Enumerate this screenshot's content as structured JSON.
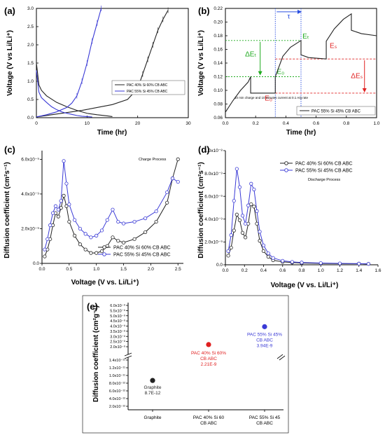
{
  "colors": {
    "black": "#222222",
    "blue": "#3a3ad6",
    "red": "#e02020",
    "green": "#1faa1f",
    "gridblue": "#2a4fe0"
  },
  "chart_data": [
    {
      "panel": "(a)",
      "type": "line",
      "xlabel": "Time (hr)",
      "ylabel": "Voltage (V vs Li/Li⁺)",
      "xlim": [
        0,
        30
      ],
      "ylim": [
        0,
        3
      ],
      "xticks": [
        "0",
        "10",
        "20",
        "30"
      ],
      "yticks": [
        "0.0",
        "0.5",
        "1.0",
        "1.5",
        "2.0",
        "2.5",
        "3.0"
      ],
      "legend_position": "center-right",
      "series": [
        {
          "name": "PAC 40% Si 60% CB ABC",
          "color": "#222222",
          "discharge": [
            [
              0,
              1.5
            ],
            [
              0.5,
              0.9
            ],
            [
              1,
              0.75
            ],
            [
              2,
              0.6
            ],
            [
              4,
              0.42
            ],
            [
              6,
              0.3
            ],
            [
              8,
              0.2
            ],
            [
              10,
              0.12
            ],
            [
              12,
              0.08
            ],
            [
              14,
              0.05
            ],
            [
              15,
              0.03
            ]
          ],
          "charge": [
            [
              0,
              0.02
            ],
            [
              3,
              0.08
            ],
            [
              6,
              0.14
            ],
            [
              9,
              0.2
            ],
            [
              12,
              0.28
            ],
            [
              15,
              0.36
            ],
            [
              18,
              0.5
            ],
            [
              20,
              0.8
            ],
            [
              21,
              1.2
            ],
            [
              22,
              1.6
            ],
            [
              23,
              2.0
            ],
            [
              24,
              2.4
            ],
            [
              25,
              2.7
            ],
            [
              26,
              2.95
            ]
          ]
        },
        {
          "name": "PAC 55% Si 45% CB ABC",
          "color": "#3a3ad6",
          "discharge": [
            [
              0,
              1.3
            ],
            [
              0.5,
              0.7
            ],
            [
              1,
              0.55
            ],
            [
              2,
              0.42
            ],
            [
              3,
              0.3
            ],
            [
              4,
              0.22
            ],
            [
              5,
              0.16
            ],
            [
              6,
              0.12
            ],
            [
              7,
              0.09
            ],
            [
              8,
              0.06
            ],
            [
              9,
              0.04
            ],
            [
              10,
              0.03
            ],
            [
              11,
              0.02
            ]
          ],
          "charge": [
            [
              0,
              0.02
            ],
            [
              2,
              0.08
            ],
            [
              4,
              0.16
            ],
            [
              6,
              0.28
            ],
            [
              7,
              0.4
            ],
            [
              8,
              0.6
            ],
            [
              9,
              1.0
            ],
            [
              10,
              1.5
            ],
            [
              11,
              2.1
            ],
            [
              12,
              2.6
            ],
            [
              12.8,
              3.0
            ]
          ]
        }
      ]
    },
    {
      "panel": "(b)",
      "type": "line",
      "xlabel": "Time (hr)",
      "ylabel": "Voltage (V vs Li/Li⁺)",
      "xlim": [
        0,
        1
      ],
      "ylim": [
        0.06,
        0.22
      ],
      "xticks": [
        "0.0",
        "0.2",
        "0.4",
        "0.6",
        "0.8",
        "1.0"
      ],
      "yticks": [
        "0.06",
        "0.08",
        "0.10",
        "0.12",
        "0.14",
        "0.16",
        "0.18",
        "0.20",
        "0.22"
      ],
      "legend_position": "bottom-right",
      "annotations": [
        "τ",
        "ΔEₜ",
        "Eₜ",
        "E₀",
        "E₀",
        "Eₛ",
        "ΔEₛ"
      ],
      "note": "10 min charge and 10 minutes current at 0.1 A/g rate",
      "series": [
        {
          "name": "PAC 55% Si 45% CB ABC",
          "color": "#222222",
          "points": [
            [
              0,
              0.068
            ],
            [
              0.05,
              0.085
            ],
            [
              0.1,
              0.1
            ],
            [
              0.15,
              0.112
            ],
            [
              0.167,
              0.12
            ],
            [
              0.167,
              0.096
            ],
            [
              0.33,
              0.096
            ],
            [
              0.33,
              0.12
            ],
            [
              0.38,
              0.15
            ],
            [
              0.43,
              0.163
            ],
            [
              0.5,
              0.173
            ],
            [
              0.5,
              0.152
            ],
            [
              0.55,
              0.148
            ],
            [
              0.667,
              0.146
            ],
            [
              0.667,
              0.172
            ],
            [
              0.72,
              0.19
            ],
            [
              0.78,
              0.204
            ],
            [
              0.833,
              0.212
            ],
            [
              0.833,
              0.188
            ],
            [
              0.9,
              0.183
            ],
            [
              1.0,
              0.18
            ]
          ]
        }
      ]
    },
    {
      "panel": "(c)",
      "type": "line",
      "title": "Charge Process",
      "xlabel": "Voltage (V vs. Li/Li⁺)",
      "ylabel": "Diffusion coefficient (cm²s⁻¹)",
      "xlim": [
        0,
        2.6
      ],
      "ylim": [
        0,
        6.5e-09
      ],
      "xticks": [
        "0.0",
        "0.5",
        "1.0",
        "1.5",
        "2.0",
        "2.5"
      ],
      "yticks": [
        "0.0",
        "2.0x10⁻⁹",
        "4.0x10⁻⁹",
        "6.0x10⁻⁹"
      ],
      "legend_position": "bottom-right",
      "series": [
        {
          "name": "PAC 40% Si 60% CB ABC",
          "color": "#222222",
          "points": [
            [
              0.05,
              4e-10
            ],
            [
              0.1,
              8e-10
            ],
            [
              0.15,
              1.4e-09
            ],
            [
              0.2,
              2.2e-09
            ],
            [
              0.25,
              2.9e-09
            ],
            [
              0.3,
              2.7e-09
            ],
            [
              0.35,
              3.2e-09
            ],
            [
              0.4,
              3.9e-09
            ],
            [
              0.45,
              3.3e-09
            ],
            [
              0.5,
              2.4e-09
            ],
            [
              0.6,
              1.6e-09
            ],
            [
              0.7,
              1.1e-09
            ],
            [
              0.8,
              8e-10
            ],
            [
              0.9,
              6e-10
            ],
            [
              1.0,
              6e-10
            ],
            [
              1.1,
              7e-10
            ],
            [
              1.2,
              1e-09
            ],
            [
              1.3,
              1.5e-09
            ],
            [
              1.4,
              1.3e-09
            ],
            [
              1.5,
              1.2e-09
            ],
            [
              1.7,
              1.4e-09
            ],
            [
              1.9,
              1.8e-09
            ],
            [
              2.1,
              2.4e-09
            ],
            [
              2.3,
              3.5e-09
            ],
            [
              2.4,
              4.9e-09
            ],
            [
              2.5,
              6e-09
            ]
          ]
        },
        {
          "name": "PAC 55% Si 45% CB ABC",
          "color": "#3a3ad6",
          "points": [
            [
              0.05,
              8e-10
            ],
            [
              0.1,
              1.4e-09
            ],
            [
              0.15,
              2.2e-09
            ],
            [
              0.2,
              2.9e-09
            ],
            [
              0.25,
              3.3e-09
            ],
            [
              0.3,
              3.1e-09
            ],
            [
              0.35,
              3.6e-09
            ],
            [
              0.4,
              5.9e-09
            ],
            [
              0.45,
              4.6e-09
            ],
            [
              0.5,
              3.4e-09
            ],
            [
              0.6,
              2.5e-09
            ],
            [
              0.7,
              2e-09
            ],
            [
              0.8,
              1.7e-09
            ],
            [
              0.9,
              1.5e-09
            ],
            [
              1.0,
              1.6e-09
            ],
            [
              1.1,
              1.9e-09
            ],
            [
              1.2,
              2.5e-09
            ],
            [
              1.3,
              3.1e-09
            ],
            [
              1.4,
              2.4e-09
            ],
            [
              1.5,
              2.3e-09
            ],
            [
              1.7,
              2.4e-09
            ],
            [
              1.9,
              2.6e-09
            ],
            [
              2.1,
              3e-09
            ],
            [
              2.3,
              4.1e-09
            ],
            [
              2.4,
              4.9e-09
            ],
            [
              2.5,
              4.7e-09
            ]
          ]
        }
      ]
    },
    {
      "panel": "(d)",
      "type": "line",
      "title": "Discharge Process",
      "xlabel": "Voltage (V vs. Li/Li⁺)",
      "ylabel": "Diffusion coefficient (cm²s⁻¹)",
      "xlim": [
        0,
        1.6
      ],
      "ylim": [
        0,
        1e-08
      ],
      "xticks": [
        "0.0",
        "0.2",
        "0.4",
        "0.6",
        "0.8",
        "1.0",
        "1.2",
        "1.4",
        "1.6"
      ],
      "yticks": [
        "0.0",
        "2.0x10⁻⁹",
        "4.0x10⁻⁹",
        "6.0x10⁻⁹",
        "8.0x10⁻⁹",
        "1.0x10⁻⁸"
      ],
      "legend_position": "top-right",
      "series": [
        {
          "name": "PAC 40% Si 60% CB ABC",
          "color": "#222222",
          "points": [
            [
              0.03,
              8e-10
            ],
            [
              0.06,
              1.5e-09
            ],
            [
              0.09,
              3e-09
            ],
            [
              0.12,
              4.4e-09
            ],
            [
              0.15,
              3.9e-09
            ],
            [
              0.18,
              2.8e-09
            ],
            [
              0.21,
              2.4e-09
            ],
            [
              0.24,
              3.6e-09
            ],
            [
              0.27,
              5.3e-09
            ],
            [
              0.3,
              5.1e-09
            ],
            [
              0.33,
              3.6e-09
            ],
            [
              0.36,
              2.1e-09
            ],
            [
              0.4,
              1.2e-09
            ],
            [
              0.45,
              7e-10
            ],
            [
              0.5,
              4e-10
            ],
            [
              0.6,
              2.5e-10
            ],
            [
              0.7,
              2e-10
            ],
            [
              0.8,
              1.5e-10
            ],
            [
              1.0,
              1.2e-10
            ],
            [
              1.2,
              1e-10
            ],
            [
              1.4,
              1e-10
            ],
            [
              1.5,
              8e-11
            ]
          ]
        },
        {
          "name": "PAC 55% Si 45% CB ABC",
          "color": "#3a3ad6",
          "points": [
            [
              0.03,
              1.2e-09
            ],
            [
              0.06,
              2.6e-09
            ],
            [
              0.09,
              5.6e-09
            ],
            [
              0.12,
              8.4e-09
            ],
            [
              0.15,
              6.8e-09
            ],
            [
              0.18,
              4.3e-09
            ],
            [
              0.21,
              3.6e-09
            ],
            [
              0.24,
              5.2e-09
            ],
            [
              0.27,
              7.1e-09
            ],
            [
              0.3,
              6.6e-09
            ],
            [
              0.33,
              4.7e-09
            ],
            [
              0.36,
              2.9e-09
            ],
            [
              0.4,
              1.7e-09
            ],
            [
              0.45,
              1e-09
            ],
            [
              0.5,
              6e-10
            ],
            [
              0.6,
              3.5e-10
            ],
            [
              0.7,
              2.5e-10
            ],
            [
              0.8,
              2e-10
            ],
            [
              1.0,
              1.5e-10
            ],
            [
              1.2,
              1.2e-10
            ],
            [
              1.4,
              1e-10
            ],
            [
              1.5,
              8e-11
            ]
          ]
        }
      ]
    },
    {
      "panel": "(e)",
      "type": "scatter",
      "ylabel": "Diffusion coefficient (cm²g⁻¹)",
      "categories": [
        "Graphite",
        "PAC 40% Si 60% CB ABC",
        "PAC 55% Si 45% CB ABC"
      ],
      "yticks_upper": [
        "2.0x10⁻⁹",
        "2.5x10⁻⁹",
        "3.0x10⁻⁹",
        "3.5x10⁻⁹",
        "4.0x10⁻⁹",
        "4.5x10⁻⁹",
        "5.0x10⁻⁹",
        "5.5x10⁻⁹",
        "6.0x10⁻⁹"
      ],
      "yticks_lower": [
        "2.0x10⁻¹²",
        "4.0x10⁻¹²",
        "6.0x10⁻¹²",
        "8.0x10⁻¹²",
        "1.0x10⁻¹¹",
        "1.2x10⁻¹¹",
        "1.4x10⁻¹¹"
      ],
      "points": [
        {
          "label": "Graphite",
          "value_text": "8.7E-12",
          "value": 8.7e-12,
          "color": "#222222"
        },
        {
          "label": "PAC 40% Si 60% CB ABC",
          "value_text": "2.21E-9",
          "value": 2.21e-09,
          "color": "#e02020"
        },
        {
          "label": "PAC 55% Si 45% CB ABC",
          "value_text": "3.94E-9",
          "value": 3.94e-09,
          "color": "#3a3ad6"
        }
      ]
    }
  ]
}
